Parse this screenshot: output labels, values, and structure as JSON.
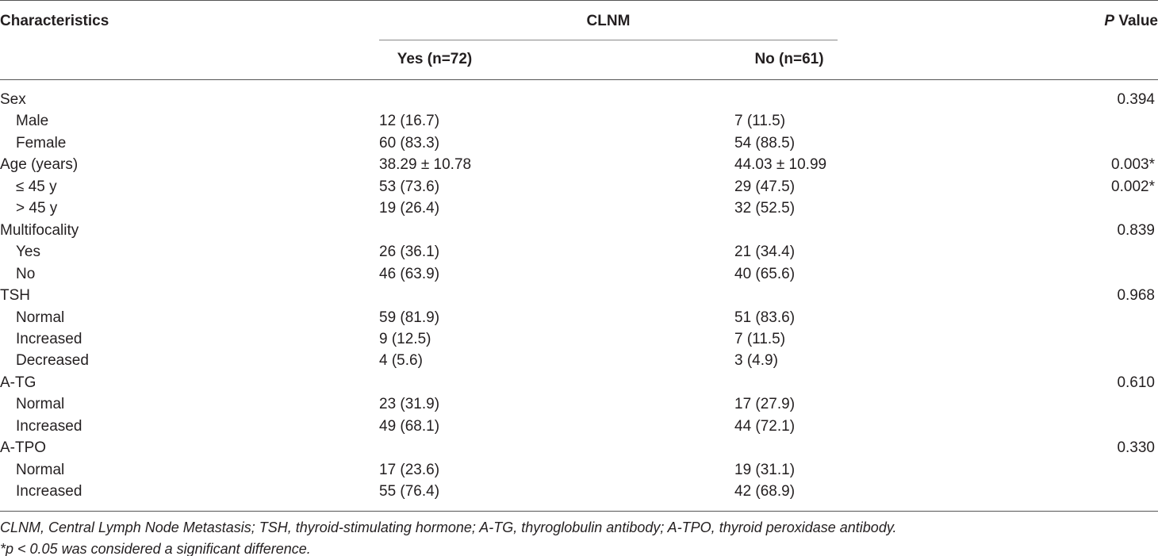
{
  "header": {
    "characteristics": "Characteristics",
    "group": "CLNM",
    "p_value": [
      "P",
      "Value"
    ],
    "yes": "Yes (n=72)",
    "no": "No (n=61)"
  },
  "groups": [
    {
      "label": "Sex",
      "p": "0.394",
      "rows": [
        {
          "label": "Male",
          "yes": "12 (16.7)",
          "no": "7 (11.5)"
        },
        {
          "label": "Female",
          "yes": "60 (83.3)",
          "no": "54 (88.5)"
        }
      ]
    },
    {
      "label": "Age (years)",
      "yes": "38.29 ± 10.78",
      "no": "44.03 ± 10.99",
      "p": "0.003*",
      "rows": [
        {
          "label": "≤ 45 y",
          "yes": "53 (73.6)",
          "no": "29 (47.5)",
          "p": "0.002*"
        },
        {
          "label": "> 45 y",
          "yes": "19 (26.4)",
          "no": "32 (52.5)"
        }
      ]
    },
    {
      "label": "Multifocality",
      "p": "0.839",
      "rows": [
        {
          "label": "Yes",
          "yes": "26 (36.1)",
          "no": "21 (34.4)"
        },
        {
          "label": "No",
          "yes": "46 (63.9)",
          "no": "40 (65.6)"
        }
      ]
    },
    {
      "label": "TSH",
      "p": "0.968",
      "rows": [
        {
          "label": "Normal",
          "yes": "59 (81.9)",
          "no": "51 (83.6)"
        },
        {
          "label": "Increased",
          "yes": "9 (12.5)",
          "no": "7 (11.5)"
        },
        {
          "label": "Decreased",
          "yes": "4 (5.6)",
          "no": "3 (4.9)"
        }
      ]
    },
    {
      "label": "A-TG",
      "p": "0.610",
      "rows": [
        {
          "label": "Normal",
          "yes": "23 (31.9)",
          "no": "17 (27.9)"
        },
        {
          "label": "Increased",
          "yes": "49 (68.1)",
          "no": "44 (72.1)"
        }
      ]
    },
    {
      "label": "A-TPO",
      "p": "0.330",
      "rows": [
        {
          "label": "Normal",
          "yes": "17 (23.6)",
          "no": "19 (31.1)"
        },
        {
          "label": "Increased",
          "yes": "55 (76.4)",
          "no": "42 (68.9)"
        }
      ]
    }
  ],
  "footnotes": [
    "CLNM, Central Lymph Node Metastasis; TSH, thyroid-stimulating hormone; A-TG, thyroglobulin antibody; A-TPO, thyroid peroxidase antibody.",
    "*p < 0.05 was considered a significant difference."
  ]
}
